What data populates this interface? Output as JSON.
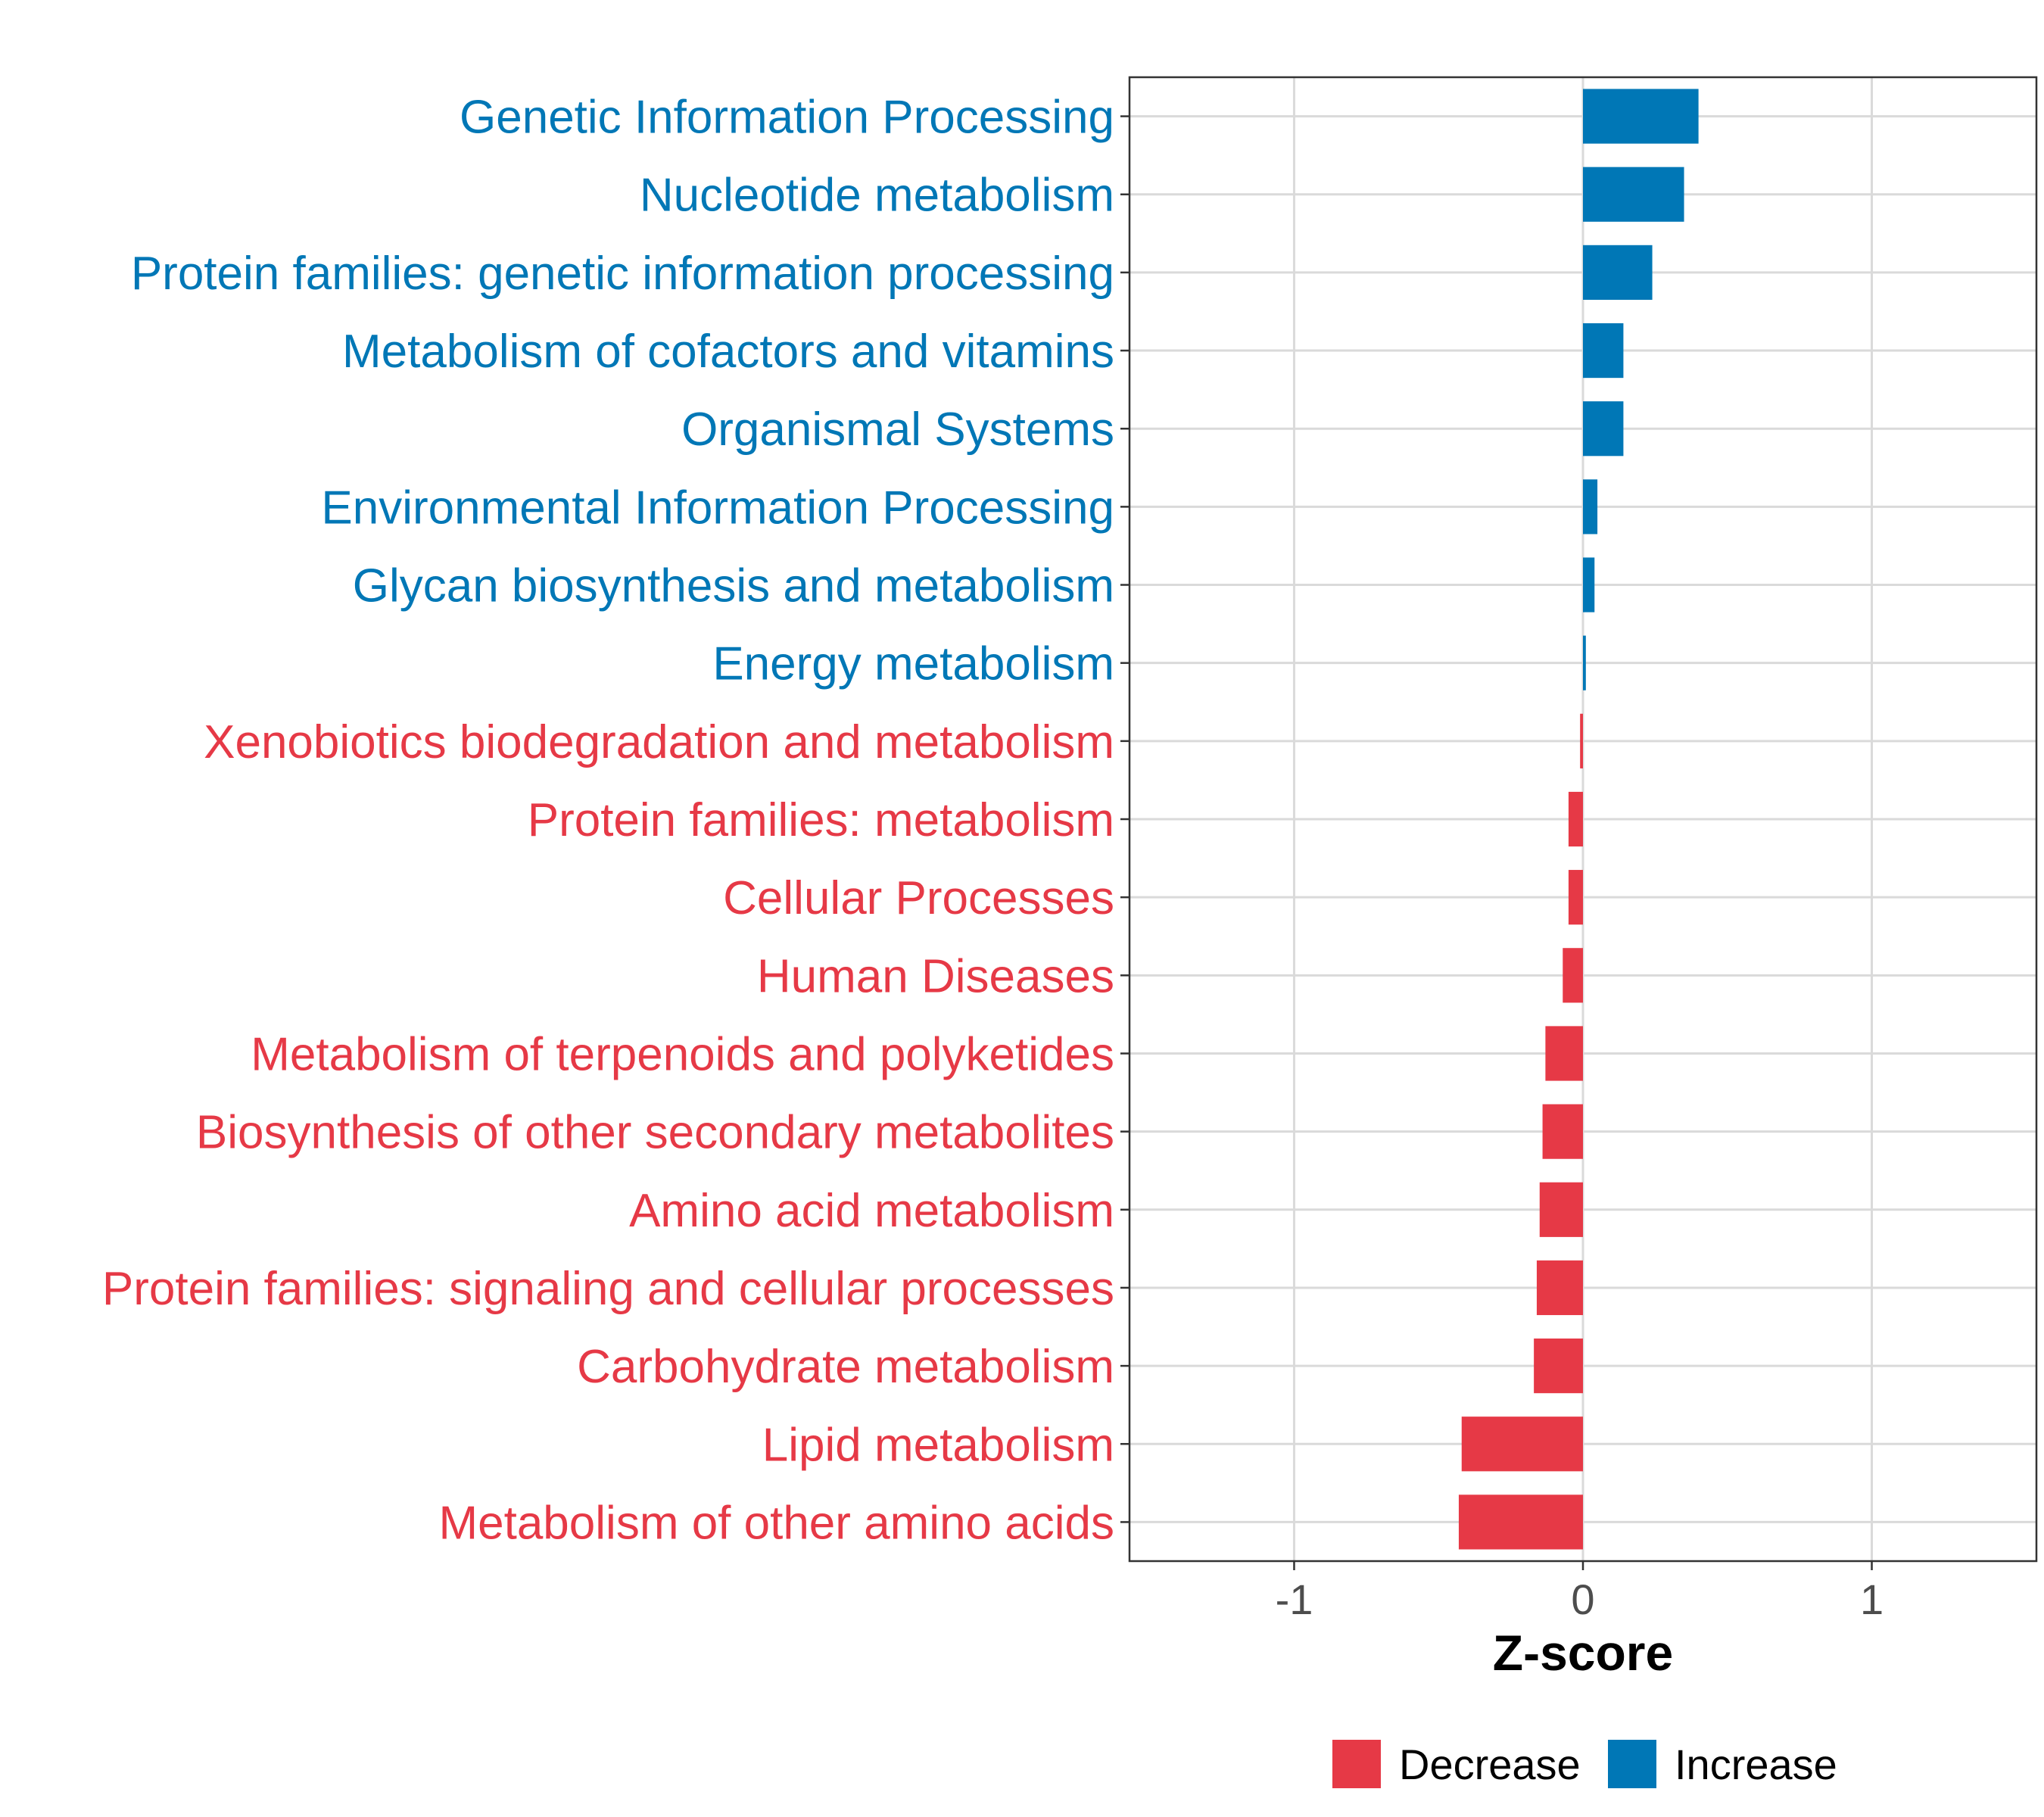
{
  "chart_data": {
    "type": "bar",
    "orientation": "horizontal",
    "title": "",
    "xlabel": "Z-score",
    "ylabel": "",
    "xlim": [
      -1.57,
      1.57
    ],
    "xticks": [
      -1,
      0,
      1
    ],
    "xtick_labels": [
      "-1",
      "0",
      "1"
    ],
    "grid": true,
    "legend_position": "bottom",
    "colors": {
      "Decrease": "#E63946",
      "Increase": "#0077B6"
    },
    "categories": [
      "Genetic Information Processing",
      "Nucleotide metabolism",
      "Protein families: genetic information processing",
      "Metabolism of cofactors and vitamins",
      "Organismal Systems",
      "Environmental Information Processing",
      "Glycan biosynthesis and metabolism",
      "Energy metabolism",
      "Xenobiotics biodegradation and metabolism",
      "Protein families: metabolism",
      "Cellular Processes",
      "Human Diseases",
      "Metabolism of terpenoids and polyketides",
      "Biosynthesis of other secondary metabolites",
      "Amino acid metabolism",
      "Protein families: signaling and cellular processes",
      "Carbohydrate metabolism",
      "Lipid metabolism",
      "Metabolism of other amino acids"
    ],
    "values": [
      0.4,
      0.35,
      0.24,
      0.14,
      0.14,
      0.05,
      0.04,
      0.01,
      -0.01,
      -0.05,
      -0.05,
      -0.07,
      -0.13,
      -0.14,
      -0.15,
      -0.16,
      -0.17,
      -0.42,
      -0.43
    ],
    "groups": [
      "Increase",
      "Increase",
      "Increase",
      "Increase",
      "Increase",
      "Increase",
      "Increase",
      "Increase",
      "Decrease",
      "Decrease",
      "Decrease",
      "Decrease",
      "Decrease",
      "Decrease",
      "Decrease",
      "Decrease",
      "Decrease",
      "Decrease",
      "Decrease"
    ],
    "legend": [
      {
        "label": "Decrease",
        "color": "#E63946"
      },
      {
        "label": "Increase",
        "color": "#0077B6"
      }
    ]
  }
}
